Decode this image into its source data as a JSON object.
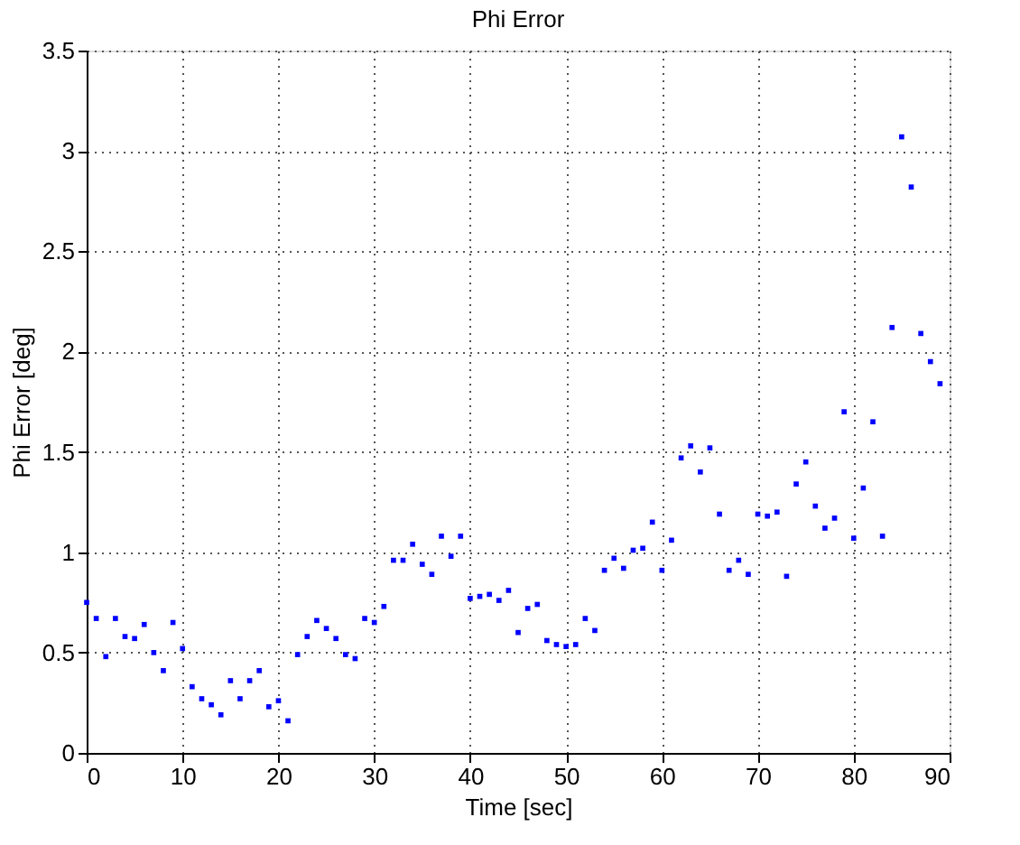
{
  "chart_data": {
    "type": "scatter",
    "title": "Phi Error",
    "xlabel": "Time [sec]",
    "ylabel": "Phi Error [deg]",
    "x": [
      0,
      1,
      2,
      3,
      4,
      5,
      6,
      7,
      8,
      9,
      10,
      11,
      12,
      13,
      14,
      15,
      16,
      17,
      18,
      19,
      20,
      21,
      22,
      23,
      24,
      25,
      26,
      27,
      28,
      29,
      30,
      31,
      32,
      33,
      34,
      35,
      36,
      37,
      38,
      39,
      40,
      41,
      42,
      43,
      44,
      45,
      46,
      47,
      48,
      49,
      50,
      51,
      52,
      53,
      54,
      55,
      56,
      57,
      58,
      59,
      60,
      61,
      62,
      63,
      64,
      65,
      66,
      67,
      68,
      69,
      70,
      71,
      72,
      73,
      74,
      75,
      76,
      77,
      78,
      79,
      80,
      81,
      82,
      83,
      84,
      85,
      86,
      87,
      88,
      89
    ],
    "series": [
      {
        "color": "#0000ff",
        "values": [
          0.75,
          0.67,
          0.48,
          0.67,
          0.58,
          0.57,
          0.64,
          0.5,
          0.41,
          0.65,
          0.52,
          0.33,
          0.27,
          0.24,
          0.19,
          0.36,
          0.27,
          0.36,
          0.41,
          0.23,
          0.26,
          0.16,
          0.49,
          0.58,
          0.66,
          0.62,
          0.57,
          0.49,
          0.47,
          0.67,
          0.65,
          0.73,
          0.96,
          0.96,
          1.04,
          0.94,
          0.89,
          1.08,
          0.98,
          1.08,
          0.77,
          0.78,
          0.79,
          0.76,
          0.81,
          0.6,
          0.72,
          0.74,
          0.56,
          0.54,
          0.53,
          0.54,
          0.67,
          0.61,
          0.91,
          0.97,
          0.92,
          1.01,
          1.02,
          1.15,
          0.91,
          1.06,
          1.47,
          1.53,
          1.4,
          1.52,
          1.19,
          0.91,
          0.96,
          0.89,
          1.19,
          1.18,
          1.2,
          0.88,
          1.34,
          1.45,
          1.23,
          1.12,
          1.17,
          1.7,
          1.07,
          1.32,
          1.65,
          1.08,
          2.12,
          3.07,
          2.82,
          2.09,
          1.95,
          1.84
        ]
      }
    ],
    "xlim": [
      0,
      90
    ],
    "xticks": [
      0,
      10,
      20,
      30,
      40,
      50,
      60,
      70,
      80,
      90
    ],
    "ylim": [
      0,
      3.5
    ],
    "yticks": [
      0,
      0.5,
      1,
      1.5,
      2,
      2.5,
      3,
      3.5
    ],
    "grid": true,
    "marker": "square"
  }
}
